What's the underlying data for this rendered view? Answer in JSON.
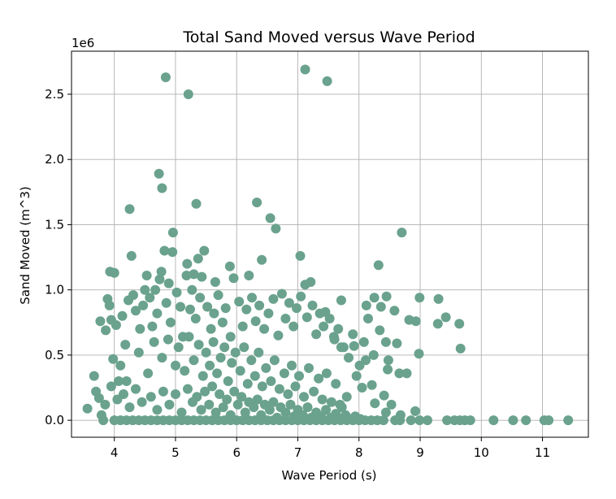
{
  "chart_data": {
    "type": "scatter",
    "title": "Total Sand Moved versus Wave Period",
    "xlabel": "Wave Period (s)",
    "ylabel": "Sand Moved (m^3)",
    "y_offset_label": "1e6",
    "xlim": [
      3.3,
      11.75
    ],
    "ylim": [
      -130000,
      2830000
    ],
    "x_ticks": [
      4,
      5,
      6,
      7,
      8,
      9,
      10,
      11
    ],
    "x_tick_labels": [
      "4",
      "5",
      "6",
      "7",
      "8",
      "9",
      "10",
      "11"
    ],
    "y_ticks": [
      0,
      500000,
      1000000,
      1500000,
      2000000,
      2500000
    ],
    "y_tick_labels": [
      "0.0",
      "0.5",
      "1.0",
      "1.5",
      "2.0",
      "2.5"
    ],
    "grid": true,
    "marker_color": "#6aa28e",
    "series": [
      {
        "points": [
          [
            4.84,
            2630000
          ],
          [
            5.21,
            2500000
          ],
          [
            7.12,
            2690000
          ],
          [
            7.48,
            2600000
          ],
          [
            4.73,
            1890000
          ],
          [
            4.78,
            1780000
          ],
          [
            5.34,
            1660000
          ],
          [
            4.25,
            1620000
          ],
          [
            6.33,
            1670000
          ],
          [
            6.55,
            1550000
          ],
          [
            6.64,
            1470000
          ],
          [
            8.7,
            1440000
          ],
          [
            4.96,
            1440000
          ],
          [
            4.28,
            1260000
          ],
          [
            7.04,
            1260000
          ],
          [
            5.47,
            1300000
          ],
          [
            4.82,
            1300000
          ],
          [
            4.95,
            1290000
          ],
          [
            5.37,
            1240000
          ],
          [
            6.41,
            1230000
          ],
          [
            5.19,
            1200000
          ],
          [
            8.32,
            1190000
          ],
          [
            4.77,
            1140000
          ],
          [
            5.89,
            1180000
          ],
          [
            3.93,
            1140000
          ],
          [
            4.0,
            1130000
          ],
          [
            4.53,
            1110000
          ],
          [
            5.18,
            1110000
          ],
          [
            5.3,
            1120000
          ],
          [
            5.43,
            1100000
          ],
          [
            5.95,
            1090000
          ],
          [
            6.2,
            1110000
          ],
          [
            4.74,
            1080000
          ],
          [
            4.89,
            1050000
          ],
          [
            5.65,
            1060000
          ],
          [
            7.12,
            1040000
          ],
          [
            7.21,
            1060000
          ],
          [
            8.99,
            940000
          ],
          [
            9.3,
            930000
          ],
          [
            7.71,
            920000
          ],
          [
            8.45,
            950000
          ],
          [
            8.25,
            940000
          ],
          [
            8.12,
            880000
          ],
          [
            8.36,
            870000
          ],
          [
            8.58,
            840000
          ],
          [
            7.45,
            830000
          ],
          [
            9.42,
            790000
          ],
          [
            8.82,
            770000
          ],
          [
            8.93,
            760000
          ],
          [
            9.29,
            740000
          ],
          [
            9.64,
            740000
          ],
          [
            8.34,
            690000
          ],
          [
            8.44,
            600000
          ],
          [
            7.92,
            570000
          ],
          [
            8.62,
            590000
          ],
          [
            7.59,
            640000
          ],
          [
            7.71,
            560000
          ],
          [
            8.24,
            500000
          ],
          [
            8.48,
            460000
          ],
          [
            8.11,
            460000
          ],
          [
            8.98,
            510000
          ],
          [
            9.66,
            550000
          ],
          [
            8.66,
            360000
          ],
          [
            8.78,
            360000
          ],
          [
            8.47,
            390000
          ],
          [
            7.96,
            340000
          ],
          [
            8.21,
            270000
          ],
          [
            8.05,
            250000
          ],
          [
            8.41,
            190000
          ],
          [
            7.8,
            180000
          ],
          [
            8.53,
            120000
          ],
          [
            8.26,
            130000
          ],
          [
            7.69,
            120000
          ],
          [
            8.92,
            70000
          ],
          [
            8.44,
            60000
          ],
          [
            8.68,
            40000
          ],
          [
            8.59,
            0
          ],
          [
            8.67,
            0
          ],
          [
            8.85,
            0
          ],
          [
            8.99,
            0
          ],
          [
            9.12,
            0
          ],
          [
            9.44,
            0
          ],
          [
            9.56,
            0
          ],
          [
            9.65,
            0
          ],
          [
            9.73,
            0
          ],
          [
            9.82,
            0
          ],
          [
            10.2,
            0
          ],
          [
            10.52,
            0
          ],
          [
            10.73,
            0
          ],
          [
            11.03,
            0
          ],
          [
            11.1,
            0
          ],
          [
            11.42,
            0
          ],
          [
            3.56,
            90000
          ],
          [
            3.67,
            340000
          ],
          [
            3.75,
            170000
          ],
          [
            3.77,
            760000
          ],
          [
            3.79,
            40000
          ],
          [
            3.82,
            0
          ],
          [
            3.86,
            690000
          ],
          [
            3.89,
            930000
          ],
          [
            3.92,
            880000
          ],
          [
            3.95,
            770000
          ],
          [
            3.98,
            470000
          ],
          [
            4.03,
            730000
          ],
          [
            4.07,
            300000
          ],
          [
            4.13,
            800000
          ],
          [
            4.18,
            580000
          ],
          [
            4.23,
            920000
          ],
          [
            4.31,
            960000
          ],
          [
            4.35,
            840000
          ],
          [
            4.42,
            700000
          ],
          [
            4.47,
            880000
          ],
          [
            4.5,
            1000000
          ],
          [
            4.58,
            940000
          ],
          [
            4.62,
            720000
          ],
          [
            4.67,
            1000000
          ],
          [
            4.7,
            820000
          ],
          [
            4.85,
            900000
          ],
          [
            4.92,
            750000
          ],
          [
            5.02,
            980000
          ],
          [
            5.08,
            870000
          ],
          [
            5.12,
            640000
          ],
          [
            5.24,
            850000
          ],
          [
            5.27,
            1000000
          ],
          [
            5.33,
            780000
          ],
          [
            5.4,
            940000
          ],
          [
            5.52,
            870000
          ],
          [
            5.58,
            700000
          ],
          [
            5.63,
            820000
          ],
          [
            5.7,
            960000
          ],
          [
            5.77,
            750000
          ],
          [
            5.82,
            860000
          ],
          [
            5.9,
            640000
          ],
          [
            6.04,
            910000
          ],
          [
            6.1,
            720000
          ],
          [
            6.16,
            850000
          ],
          [
            6.25,
            940000
          ],
          [
            6.31,
            760000
          ],
          [
            6.37,
            880000
          ],
          [
            6.45,
            700000
          ],
          [
            6.52,
            820000
          ],
          [
            6.6,
            930000
          ],
          [
            6.68,
            650000
          ],
          [
            6.74,
            970000
          ],
          [
            6.8,
            780000
          ],
          [
            6.86,
            900000
          ],
          [
            6.93,
            720000
          ],
          [
            6.98,
            860000
          ],
          [
            7.05,
            950000
          ],
          [
            7.15,
            790000
          ],
          [
            7.24,
            880000
          ],
          [
            7.3,
            660000
          ],
          [
            7.36,
            820000
          ],
          [
            7.42,
            720000
          ],
          [
            7.52,
            780000
          ],
          [
            7.6,
            620000
          ],
          [
            7.66,
            700000
          ],
          [
            7.75,
            560000
          ],
          [
            7.83,
            480000
          ],
          [
            7.9,
            660000
          ],
          [
            8.01,
            420000
          ],
          [
            8.08,
            600000
          ],
          [
            8.15,
            780000
          ],
          [
            4.1,
            420000
          ],
          [
            4.2,
            300000
          ],
          [
            4.4,
            520000
          ],
          [
            4.55,
            360000
          ],
          [
            4.65,
            600000
          ],
          [
            4.78,
            480000
          ],
          [
            4.88,
            620000
          ],
          [
            5.0,
            420000
          ],
          [
            5.05,
            560000
          ],
          [
            5.15,
            380000
          ],
          [
            5.22,
            640000
          ],
          [
            5.3,
            460000
          ],
          [
            5.38,
            580000
          ],
          [
            5.45,
            340000
          ],
          [
            5.5,
            520000
          ],
          [
            5.56,
            420000
          ],
          [
            5.62,
            600000
          ],
          [
            5.68,
            360000
          ],
          [
            5.74,
            480000
          ],
          [
            5.8,
            560000
          ],
          [
            5.86,
            300000
          ],
          [
            5.92,
            440000
          ],
          [
            5.98,
            520000
          ],
          [
            6.06,
            380000
          ],
          [
            6.12,
            560000
          ],
          [
            6.18,
            280000
          ],
          [
            6.24,
            460000
          ],
          [
            6.3,
            340000
          ],
          [
            6.36,
            520000
          ],
          [
            6.42,
            260000
          ],
          [
            6.48,
            400000
          ],
          [
            6.56,
            300000
          ],
          [
            6.62,
            460000
          ],
          [
            6.7,
            240000
          ],
          [
            6.78,
            360000
          ],
          [
            6.84,
            200000
          ],
          [
            6.9,
            420000
          ],
          [
            6.96,
            260000
          ],
          [
            7.02,
            340000
          ],
          [
            7.1,
            180000
          ],
          [
            7.18,
            400000
          ],
          [
            7.26,
            220000
          ],
          [
            7.34,
            320000
          ],
          [
            7.4,
            160000
          ],
          [
            7.47,
            360000
          ],
          [
            7.55,
            140000
          ],
          [
            7.62,
            280000
          ],
          [
            7.72,
            100000
          ],
          [
            3.7,
            220000
          ],
          [
            3.85,
            120000
          ],
          [
            3.95,
            260000
          ],
          [
            4.05,
            160000
          ],
          [
            4.15,
            200000
          ],
          [
            4.25,
            100000
          ],
          [
            4.35,
            240000
          ],
          [
            4.45,
            140000
          ],
          [
            4.6,
            180000
          ],
          [
            4.7,
            80000
          ],
          [
            4.8,
            220000
          ],
          [
            4.9,
            120000
          ],
          [
            5.0,
            200000
          ],
          [
            5.1,
            60000
          ],
          [
            5.2,
            240000
          ],
          [
            5.28,
            140000
          ],
          [
            5.35,
            180000
          ],
          [
            5.42,
            80000
          ],
          [
            5.48,
            220000
          ],
          [
            5.55,
            120000
          ],
          [
            5.6,
            260000
          ],
          [
            5.66,
            60000
          ],
          [
            5.72,
            200000
          ],
          [
            5.78,
            100000
          ],
          [
            5.84,
            160000
          ],
          [
            5.9,
            40000
          ],
          [
            5.96,
            220000
          ],
          [
            6.02,
            120000
          ],
          [
            6.08,
            180000
          ],
          [
            6.14,
            60000
          ],
          [
            6.2,
            140000
          ],
          [
            6.28,
            100000
          ],
          [
            6.34,
            160000
          ],
          [
            6.4,
            40000
          ],
          [
            6.46,
            120000
          ],
          [
            6.54,
            80000
          ],
          [
            6.6,
            140000
          ],
          [
            6.66,
            20000
          ],
          [
            6.72,
            100000
          ],
          [
            6.8,
            60000
          ],
          [
            6.88,
            120000
          ],
          [
            6.94,
            30000
          ],
          [
            7.0,
            80000
          ],
          [
            7.08,
            40000
          ],
          [
            7.16,
            100000
          ],
          [
            7.22,
            20000
          ],
          [
            7.3,
            60000
          ],
          [
            7.38,
            30000
          ],
          [
            7.46,
            80000
          ],
          [
            7.54,
            20000
          ],
          [
            7.62,
            50000
          ],
          [
            7.7,
            10000
          ],
          [
            7.78,
            40000
          ],
          [
            7.86,
            10000
          ],
          [
            7.94,
            30000
          ],
          [
            8.02,
            10000
          ],
          [
            4.0,
            0
          ],
          [
            4.1,
            0
          ],
          [
            4.2,
            0
          ],
          [
            4.3,
            0
          ],
          [
            4.4,
            0
          ],
          [
            4.5,
            0
          ],
          [
            4.6,
            0
          ],
          [
            4.7,
            0
          ],
          [
            4.8,
            0
          ],
          [
            4.9,
            0
          ],
          [
            5.0,
            0
          ],
          [
            5.1,
            0
          ],
          [
            5.2,
            0
          ],
          [
            5.3,
            0
          ],
          [
            5.4,
            0
          ],
          [
            5.5,
            0
          ],
          [
            5.6,
            0
          ],
          [
            5.7,
            0
          ],
          [
            5.8,
            0
          ],
          [
            5.9,
            0
          ],
          [
            6.0,
            0
          ],
          [
            6.1,
            0
          ],
          [
            6.2,
            0
          ],
          [
            6.3,
            0
          ],
          [
            6.4,
            0
          ],
          [
            6.5,
            0
          ],
          [
            6.6,
            0
          ],
          [
            6.7,
            0
          ],
          [
            6.8,
            0
          ],
          [
            6.9,
            0
          ],
          [
            7.0,
            0
          ],
          [
            7.1,
            0
          ],
          [
            7.2,
            0
          ],
          [
            7.3,
            0
          ],
          [
            7.4,
            0
          ],
          [
            7.5,
            0
          ],
          [
            7.6,
            0
          ],
          [
            7.7,
            0
          ],
          [
            7.8,
            0
          ],
          [
            7.9,
            0
          ],
          [
            8.0,
            0
          ],
          [
            8.1,
            0
          ],
          [
            8.2,
            0
          ],
          [
            8.3,
            0
          ],
          [
            8.4,
            0
          ]
        ]
      }
    ]
  }
}
